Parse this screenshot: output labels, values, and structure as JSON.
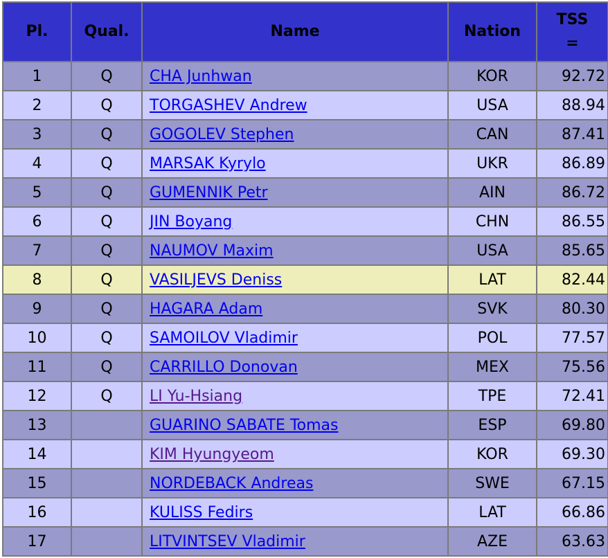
{
  "table": {
    "columns": [
      "Pl.",
      "Qual.",
      "Name",
      "Nation",
      {
        "label": "TSS",
        "symbol": "="
      }
    ],
    "rows": [
      {
        "pl": 1,
        "qual": "Q",
        "name": "CHA Junhwan",
        "nation": "KOR",
        "tss": "92.72"
      },
      {
        "pl": 2,
        "qual": "Q",
        "name": "TORGASHEV Andrew",
        "nation": "USA",
        "tss": "88.94"
      },
      {
        "pl": 3,
        "qual": "Q",
        "name": "GOGOLEV Stephen",
        "nation": "CAN",
        "tss": "87.41"
      },
      {
        "pl": 4,
        "qual": "Q",
        "name": "MARSAK Kyrylo",
        "nation": "UKR",
        "tss": "86.89"
      },
      {
        "pl": 5,
        "qual": "Q",
        "name": "GUMENNIK Petr",
        "nation": "AIN",
        "tss": "86.72"
      },
      {
        "pl": 6,
        "qual": "Q",
        "name": "JIN Boyang",
        "nation": "CHN",
        "tss": "86.55"
      },
      {
        "pl": 7,
        "qual": "Q",
        "name": "NAUMOV Maxim",
        "nation": "USA",
        "tss": "85.65"
      },
      {
        "pl": 8,
        "qual": "Q",
        "name": "VASILJEVS Deniss",
        "nation": "LAT",
        "tss": "82.44",
        "highlight": true
      },
      {
        "pl": 9,
        "qual": "Q",
        "name": "HAGARA Adam",
        "nation": "SVK",
        "tss": "80.30"
      },
      {
        "pl": 10,
        "qual": "Q",
        "name": "SAMOILOV Vladimir",
        "nation": "POL",
        "tss": "77.57"
      },
      {
        "pl": 11,
        "qual": "Q",
        "name": "CARRILLO Donovan",
        "nation": "MEX",
        "tss": "75.56"
      },
      {
        "pl": 12,
        "qual": "Q",
        "name": "LI Yu-Hsiang",
        "nation": "TPE",
        "tss": "72.41",
        "visited": true
      },
      {
        "pl": 13,
        "name": "GUARINO SABATE Tomas",
        "nation": "ESP",
        "tss": "69.80"
      },
      {
        "pl": 14,
        "name": "KIM Hyungyeom",
        "nation": "KOR",
        "tss": "69.30",
        "visited": true
      },
      {
        "pl": 15,
        "name": "NORDEBACK Andreas",
        "nation": "SWE",
        "tss": "67.15"
      },
      {
        "pl": 16,
        "name": "KULISS Fedirs",
        "nation": "LAT",
        "tss": "66.86"
      },
      {
        "pl": 17,
        "name": "LITVINTSEV Vladimir",
        "nation": "AZE",
        "tss": "63.63"
      }
    ]
  }
}
